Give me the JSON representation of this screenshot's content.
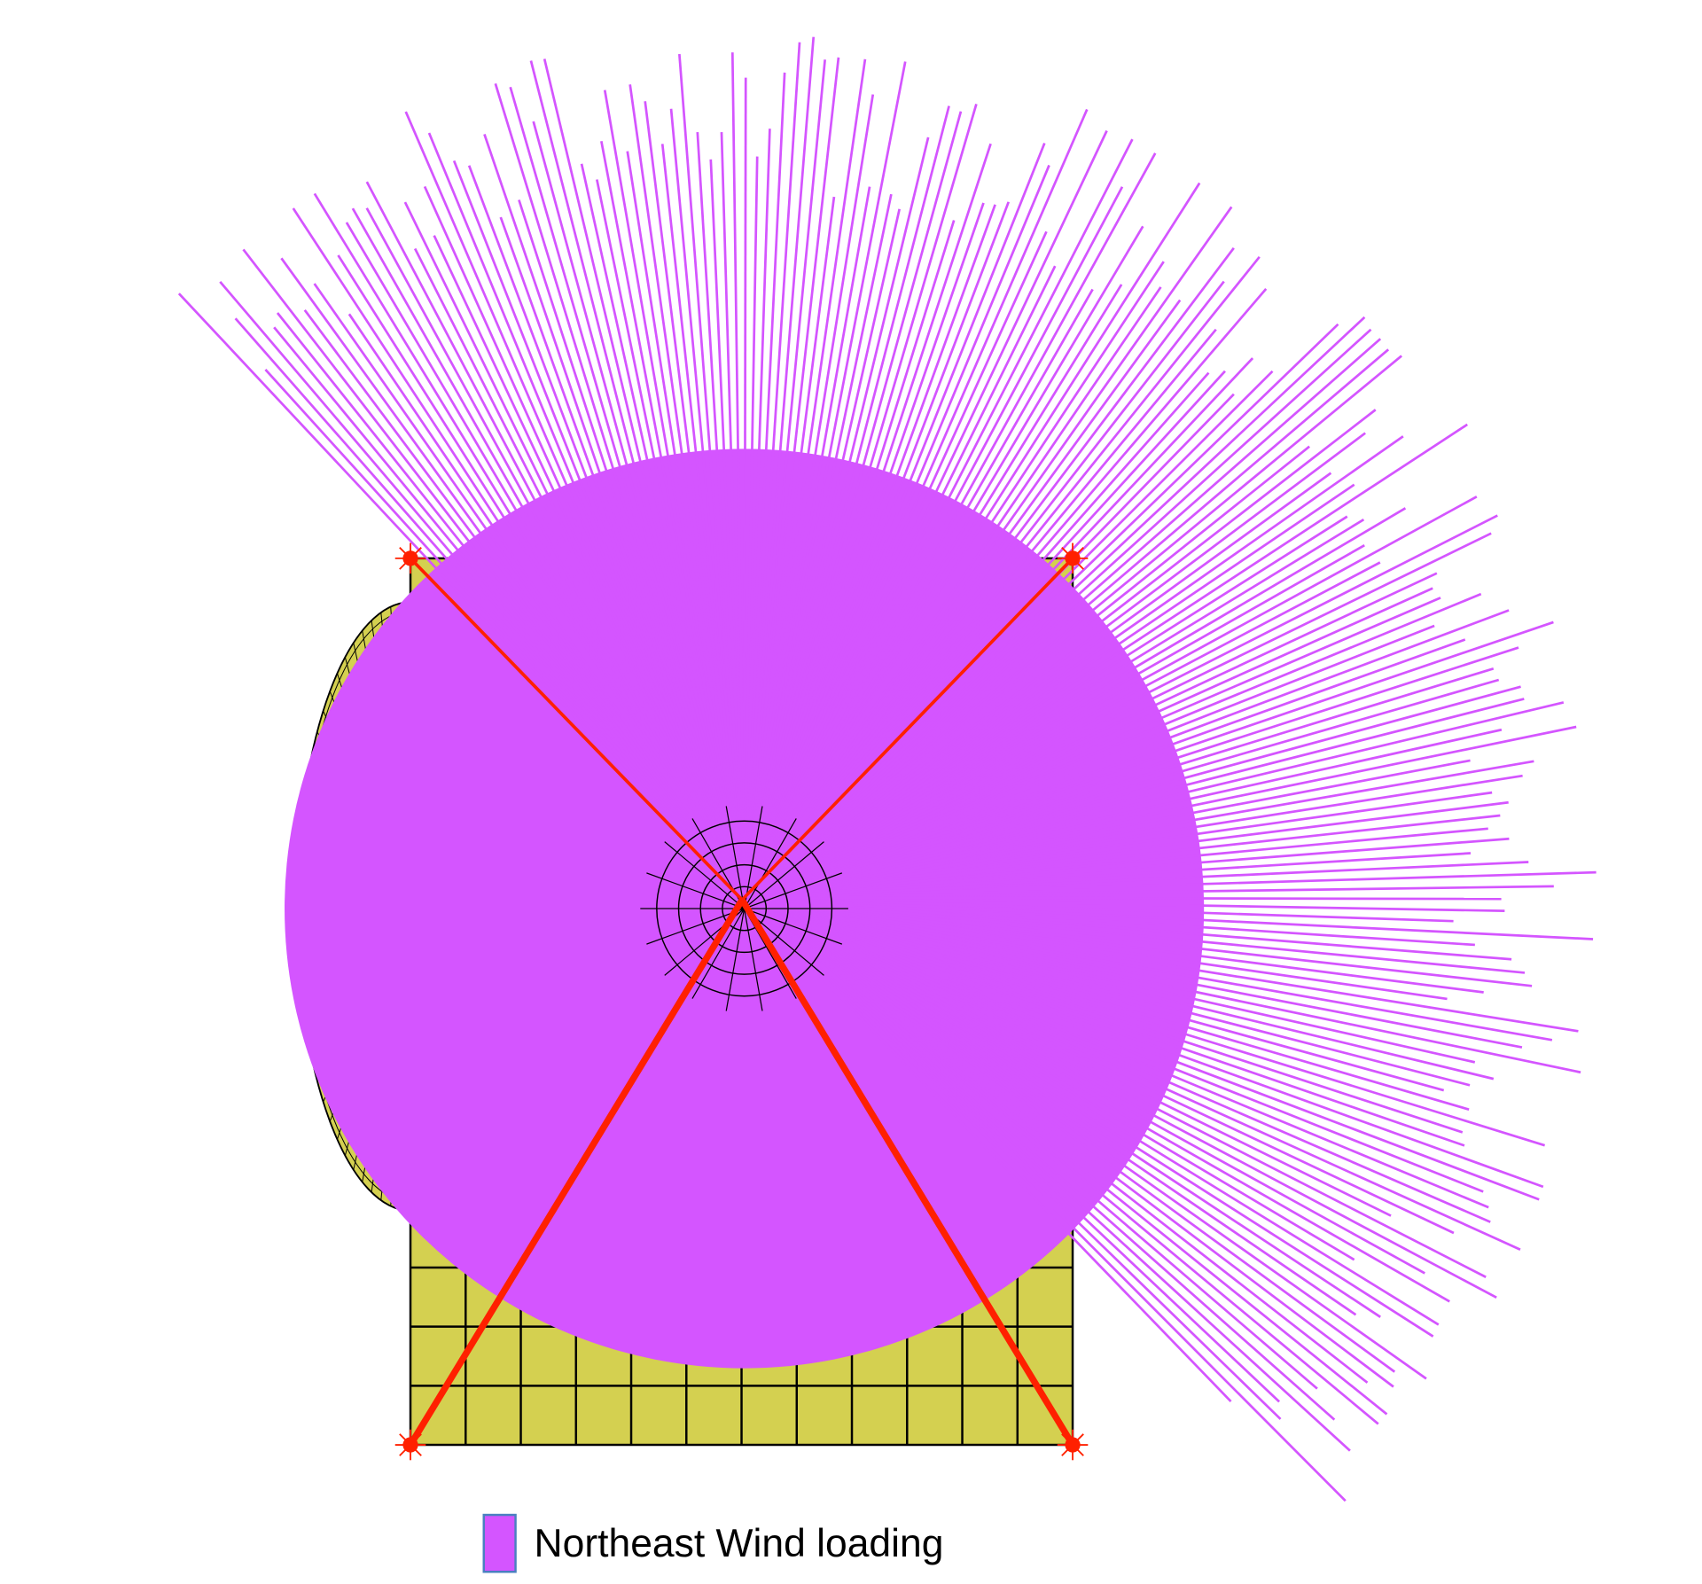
{
  "legend": {
    "label": "Northeast Wind loading"
  }
}
